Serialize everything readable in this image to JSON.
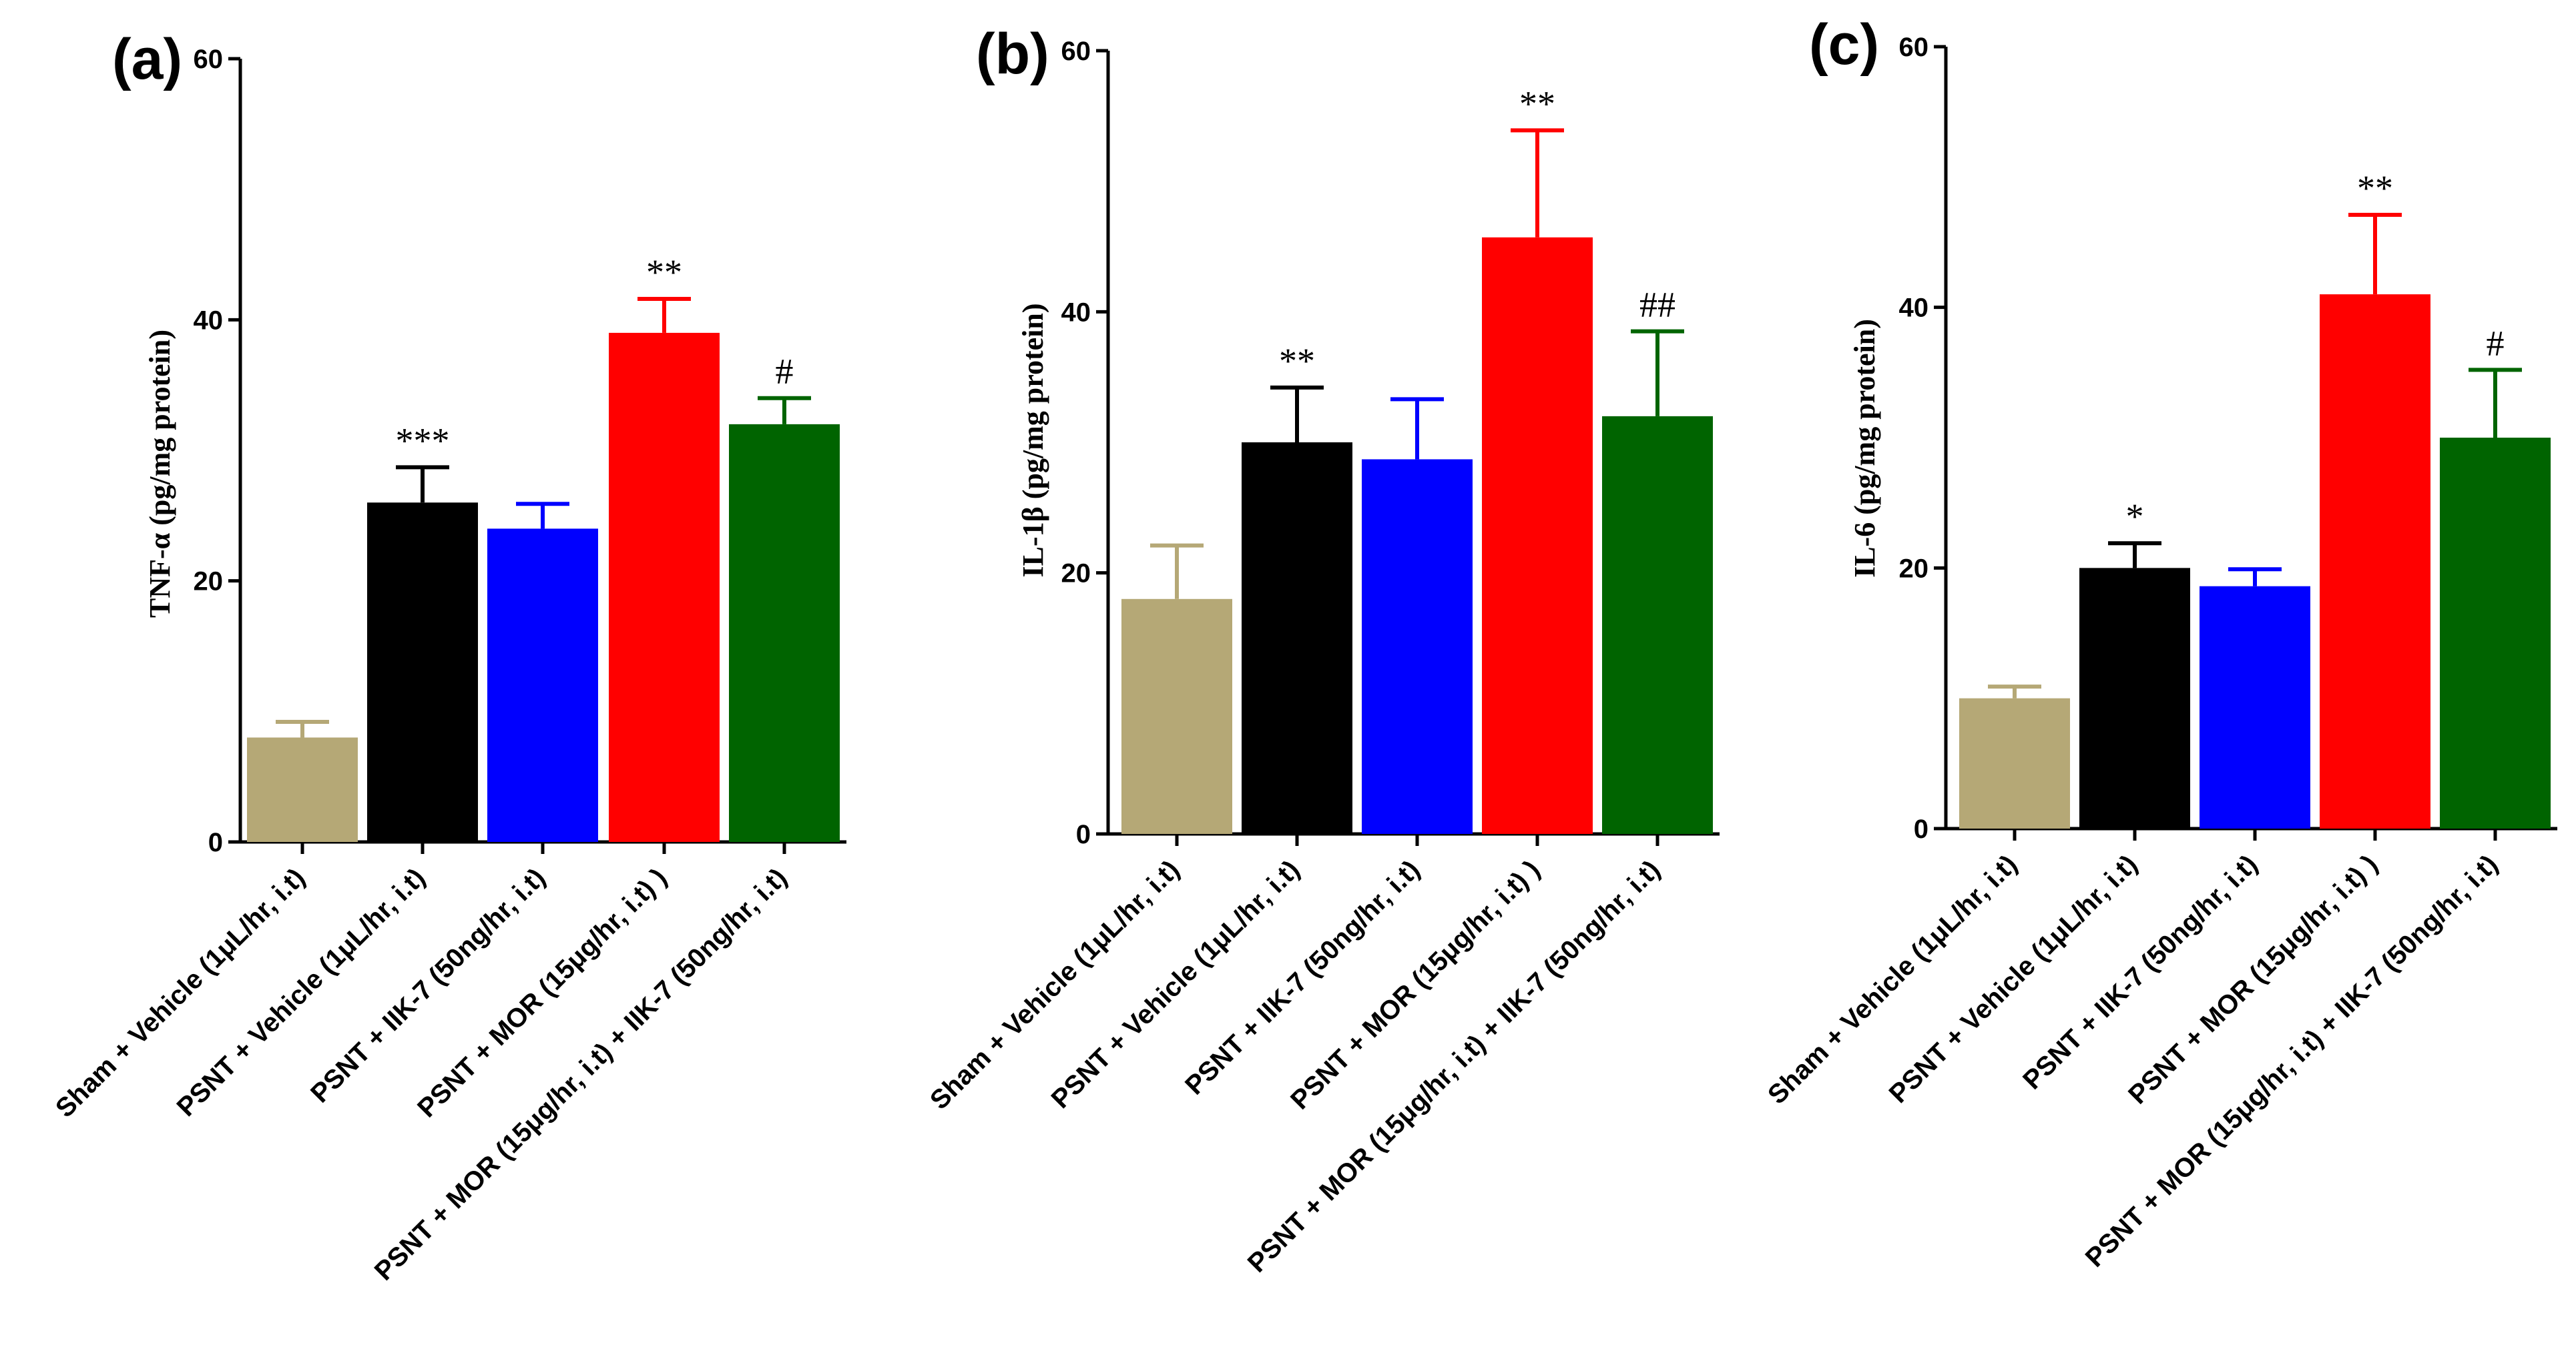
{
  "chart_data": [
    {
      "type": "bar",
      "panel": "(a)",
      "ylabel": "TNF-α (pg/mg protein)",
      "ylim": [
        0,
        60
      ],
      "yticks": [
        "0",
        "20",
        "40",
        "60"
      ],
      "categories": [
        "Sham + Vehicle (1μL/hr, i.t)",
        "PSNT + Vehicle (1μL/hr, i.t)",
        "PSNT + IIK-7 (50ng/hr, i.t)",
        "PSNT + MOR (15μg/hr, i.t) )",
        "PSNT + MOR (15μg/hr, i.t) + IIK-7 (50ng/hr, i.t)"
      ],
      "values": [
        8,
        26,
        24,
        39,
        32
      ],
      "errors": [
        1.2,
        2.7,
        1.9,
        2.6,
        2.0
      ],
      "significance": [
        "",
        "***",
        "",
        "**",
        "#"
      ]
    },
    {
      "type": "bar",
      "panel": "(b)",
      "ylabel": "IL-1β (pg/mg protein)",
      "ylim": [
        0,
        60
      ],
      "yticks": [
        "0",
        "20",
        "40",
        "60"
      ],
      "categories": [
        "Sham + Vehicle (1μL/hr, i.t)",
        "PSNT + Vehicle (1μL/hr, i.t)",
        "PSNT + IIK-7 (50ng/hr, i.t)",
        "PSNT + MOR (15μg/hr, i.t) )",
        "PSNT + MOR (15μg/hr, i.t) + IIK-7 (50ng/hr, i.t)"
      ],
      "values": [
        18,
        30,
        28.7,
        45.7,
        32
      ],
      "errors": [
        4.1,
        4.2,
        4.6,
        8.2,
        6.5
      ],
      "significance": [
        "",
        "**",
        "",
        "**",
        "##"
      ]
    },
    {
      "type": "bar",
      "panel": "(c)",
      "ylabel": "IL-6 (pg/mg protein)",
      "ylim": [
        0,
        60
      ],
      "yticks": [
        "0",
        "20",
        "40",
        "60"
      ],
      "categories": [
        "Sham + Vehicle (1μL/hr, i.t)",
        "PSNT + Vehicle (1μL/hr, i.t)",
        "PSNT + IIK-7 (50ng/hr, i.t)",
        "PSNT + MOR (15μg/hr, i.t) )",
        "PSNT + MOR (15μg/hr, i.t) + IIK-7 (50ng/hr, i.t)"
      ],
      "values": [
        10,
        20,
        18.6,
        41,
        30
      ],
      "errors": [
        0.9,
        1.9,
        1.3,
        6.1,
        5.2
      ],
      "significance": [
        "",
        "*",
        "",
        "**",
        "#"
      ]
    }
  ],
  "colors": {
    "bars": [
      "#b5a876",
      "#000000",
      "#0000ff",
      "#ff0000",
      "#006400"
    ],
    "axis": "#000000"
  }
}
